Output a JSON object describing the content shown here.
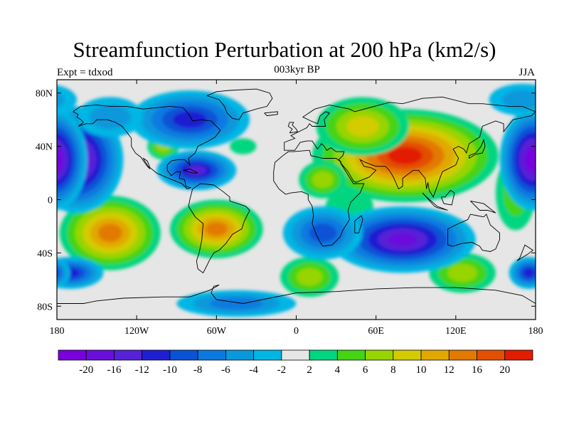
{
  "title": "Streamfunction Perturbation at 200 hPa (km2/s)",
  "left_label": "Expt = tdxod",
  "center_label": "003kyr BP",
  "right_label": "JJA",
  "map": {
    "lon_range": [
      -180,
      180
    ],
    "lat_range": [
      -90,
      90
    ],
    "lon_ticks": [
      {
        "value": -180,
        "label": "180"
      },
      {
        "value": -120,
        "label": "120W"
      },
      {
        "value": -60,
        "label": "60W"
      },
      {
        "value": 0,
        "label": "0"
      },
      {
        "value": 60,
        "label": "60E"
      },
      {
        "value": 120,
        "label": "120E"
      },
      {
        "value": 180,
        "label": "180"
      }
    ],
    "lat_ticks": [
      {
        "value": 80,
        "label": "80N"
      },
      {
        "value": 40,
        "label": "40N"
      },
      {
        "value": 0,
        "label": "0"
      },
      {
        "value": -40,
        "label": "40S"
      },
      {
        "value": -80,
        "label": "80S"
      }
    ]
  },
  "colorbar": {
    "colors": [
      "#7a00dc",
      "#6a0edc",
      "#5522d6",
      "#1f1fd2",
      "#0a52d6",
      "#0a7ae0",
      "#0a98dc",
      "#00b6e4",
      "#e6e6e6",
      "#00d680",
      "#44d414",
      "#98d400",
      "#d2cc00",
      "#e2a800",
      "#e27a00",
      "#e25000",
      "#e21c00"
    ],
    "labels": [
      "-20",
      "-16",
      "-12",
      "-10",
      "-8",
      "-6",
      "-4",
      "-2",
      "2",
      "4",
      "6",
      "8",
      "10",
      "12",
      "16",
      "20"
    ]
  },
  "anomalies": [
    {
      "lon": 82,
      "lat": 33,
      "level": 16,
      "rx": 70,
      "ry": 35
    },
    {
      "lon": 50,
      "lat": 55,
      "level": 12,
      "rx": 35,
      "ry": 22
    },
    {
      "lon": 20,
      "lat": 15,
      "level": 11,
      "rx": 18,
      "ry": 14
    },
    {
      "lon": -140,
      "lat": -25,
      "level": 14,
      "rx": 38,
      "ry": 28
    },
    {
      "lon": -60,
      "lat": -22,
      "level": 14,
      "rx": 35,
      "ry": 22
    },
    {
      "lon": 10,
      "lat": -58,
      "level": 11,
      "rx": 22,
      "ry": 15
    },
    {
      "lon": 125,
      "lat": -55,
      "level": 11,
      "rx": 25,
      "ry": 15
    },
    {
      "lon": -100,
      "lat": 40,
      "level": 11,
      "rx": 12,
      "ry": 10
    },
    {
      "lon": 40,
      "lat": -5,
      "level": 9,
      "rx": 18,
      "ry": 12
    },
    {
      "lon": -40,
      "lat": 40,
      "level": 9,
      "rx": 10,
      "ry": 6
    },
    {
      "lon": 165,
      "lat": 5,
      "level": 10,
      "rx": 15,
      "ry": 28
    },
    {
      "lon": -165,
      "lat": 30,
      "level": 0,
      "rx": 35,
      "ry": 40
    },
    {
      "lon": 178,
      "lat": 30,
      "level": 0,
      "rx": 25,
      "ry": 38
    },
    {
      "lon": -75,
      "lat": 22,
      "level": 2,
      "rx": 30,
      "ry": 15
    },
    {
      "lon": -80,
      "lat": 60,
      "level": 3,
      "rx": 45,
      "ry": 22
    },
    {
      "lon": 80,
      "lat": -30,
      "level": 1,
      "rx": 55,
      "ry": 25
    },
    {
      "lon": 20,
      "lat": -25,
      "level": 4,
      "rx": 30,
      "ry": 20
    },
    {
      "lon": -170,
      "lat": -55,
      "level": 3,
      "rx": 25,
      "ry": 12
    },
    {
      "lon": 175,
      "lat": -55,
      "level": 3,
      "rx": 15,
      "ry": 12
    },
    {
      "lon": -45,
      "lat": -78,
      "level": 5,
      "rx": 45,
      "ry": 10
    },
    {
      "lon": -140,
      "lat": 62,
      "level": 6,
      "rx": 25,
      "ry": 15
    },
    {
      "lon": 170,
      "lat": 75,
      "level": 6,
      "rx": 25,
      "ry": 12
    }
  ]
}
